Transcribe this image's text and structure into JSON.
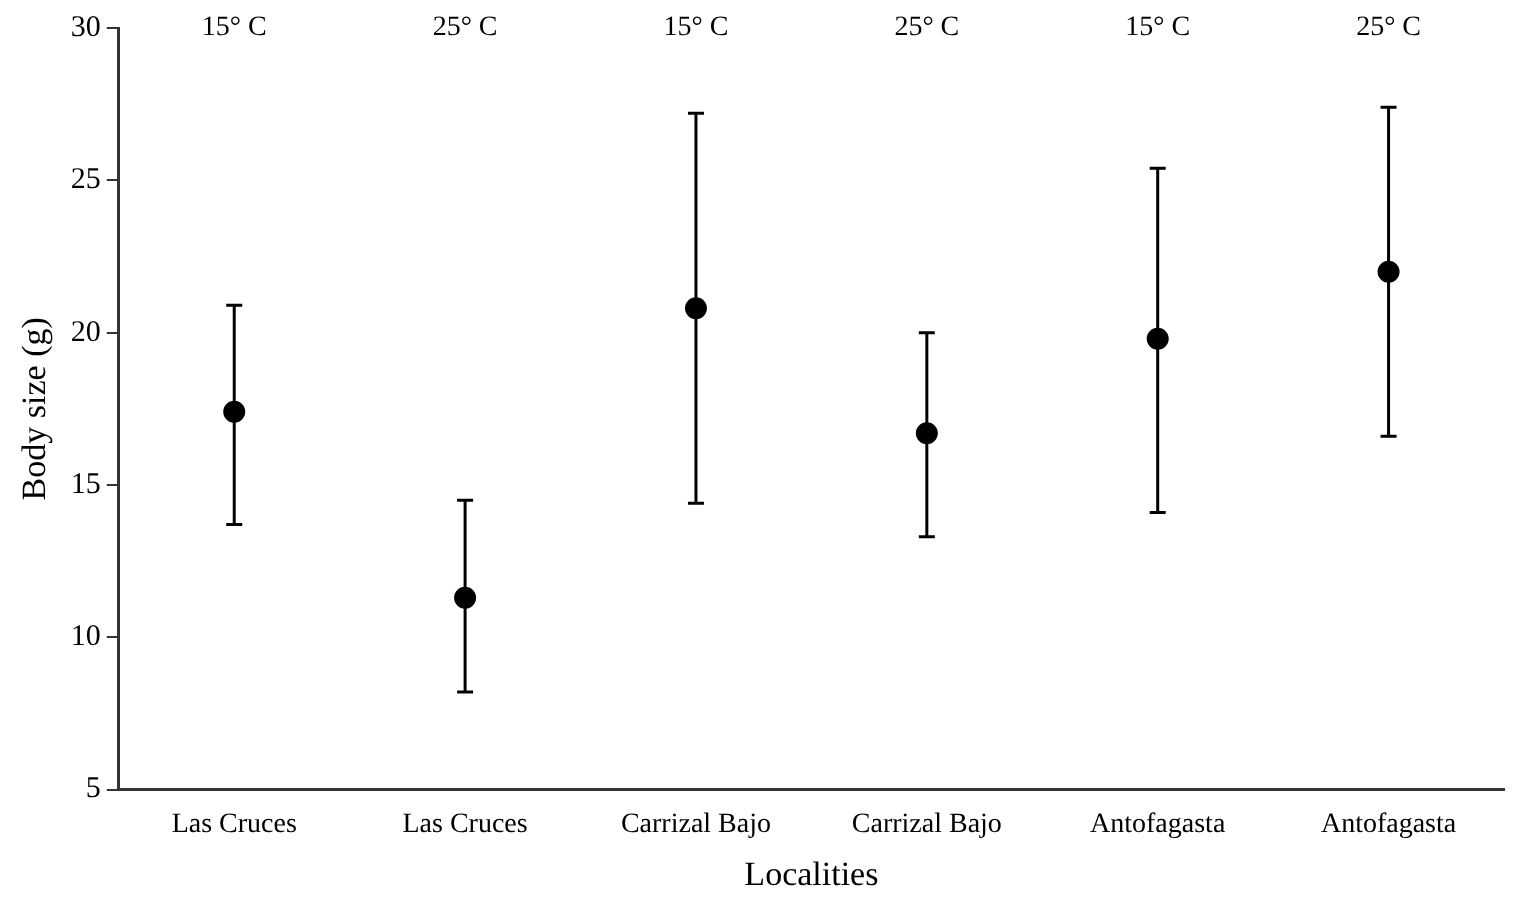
{
  "chart_data": {
    "type": "scatter",
    "xlabel": "Localities",
    "ylabel": "Body size (g)",
    "categories": [
      "Las Cruces",
      "Las Cruces",
      "Carrizal Bajo",
      "Carrizal Bajo",
      "Antofagasta",
      "Antofagasta"
    ],
    "series": [
      {
        "color": "#000000",
        "values": [
          17.4,
          11.3,
          20.8,
          16.7,
          19.8,
          22.0
        ],
        "errors": [
          [
            13.7,
            20.9
          ],
          [
            8.2,
            14.5
          ],
          [
            14.4,
            27.2
          ],
          [
            13.3,
            20.0
          ],
          [
            14.1,
            25.4
          ],
          [
            16.6,
            27.4
          ]
        ]
      }
    ],
    "annotations": [
      "15° C",
      "25° C",
      "15° C",
      "25° C",
      "15° C",
      "25° C"
    ],
    "ylim": [
      5,
      30
    ],
    "yticks": [
      5,
      10,
      15,
      20,
      25,
      30
    ],
    "grid": false,
    "legend": false,
    "marker": "circle"
  }
}
